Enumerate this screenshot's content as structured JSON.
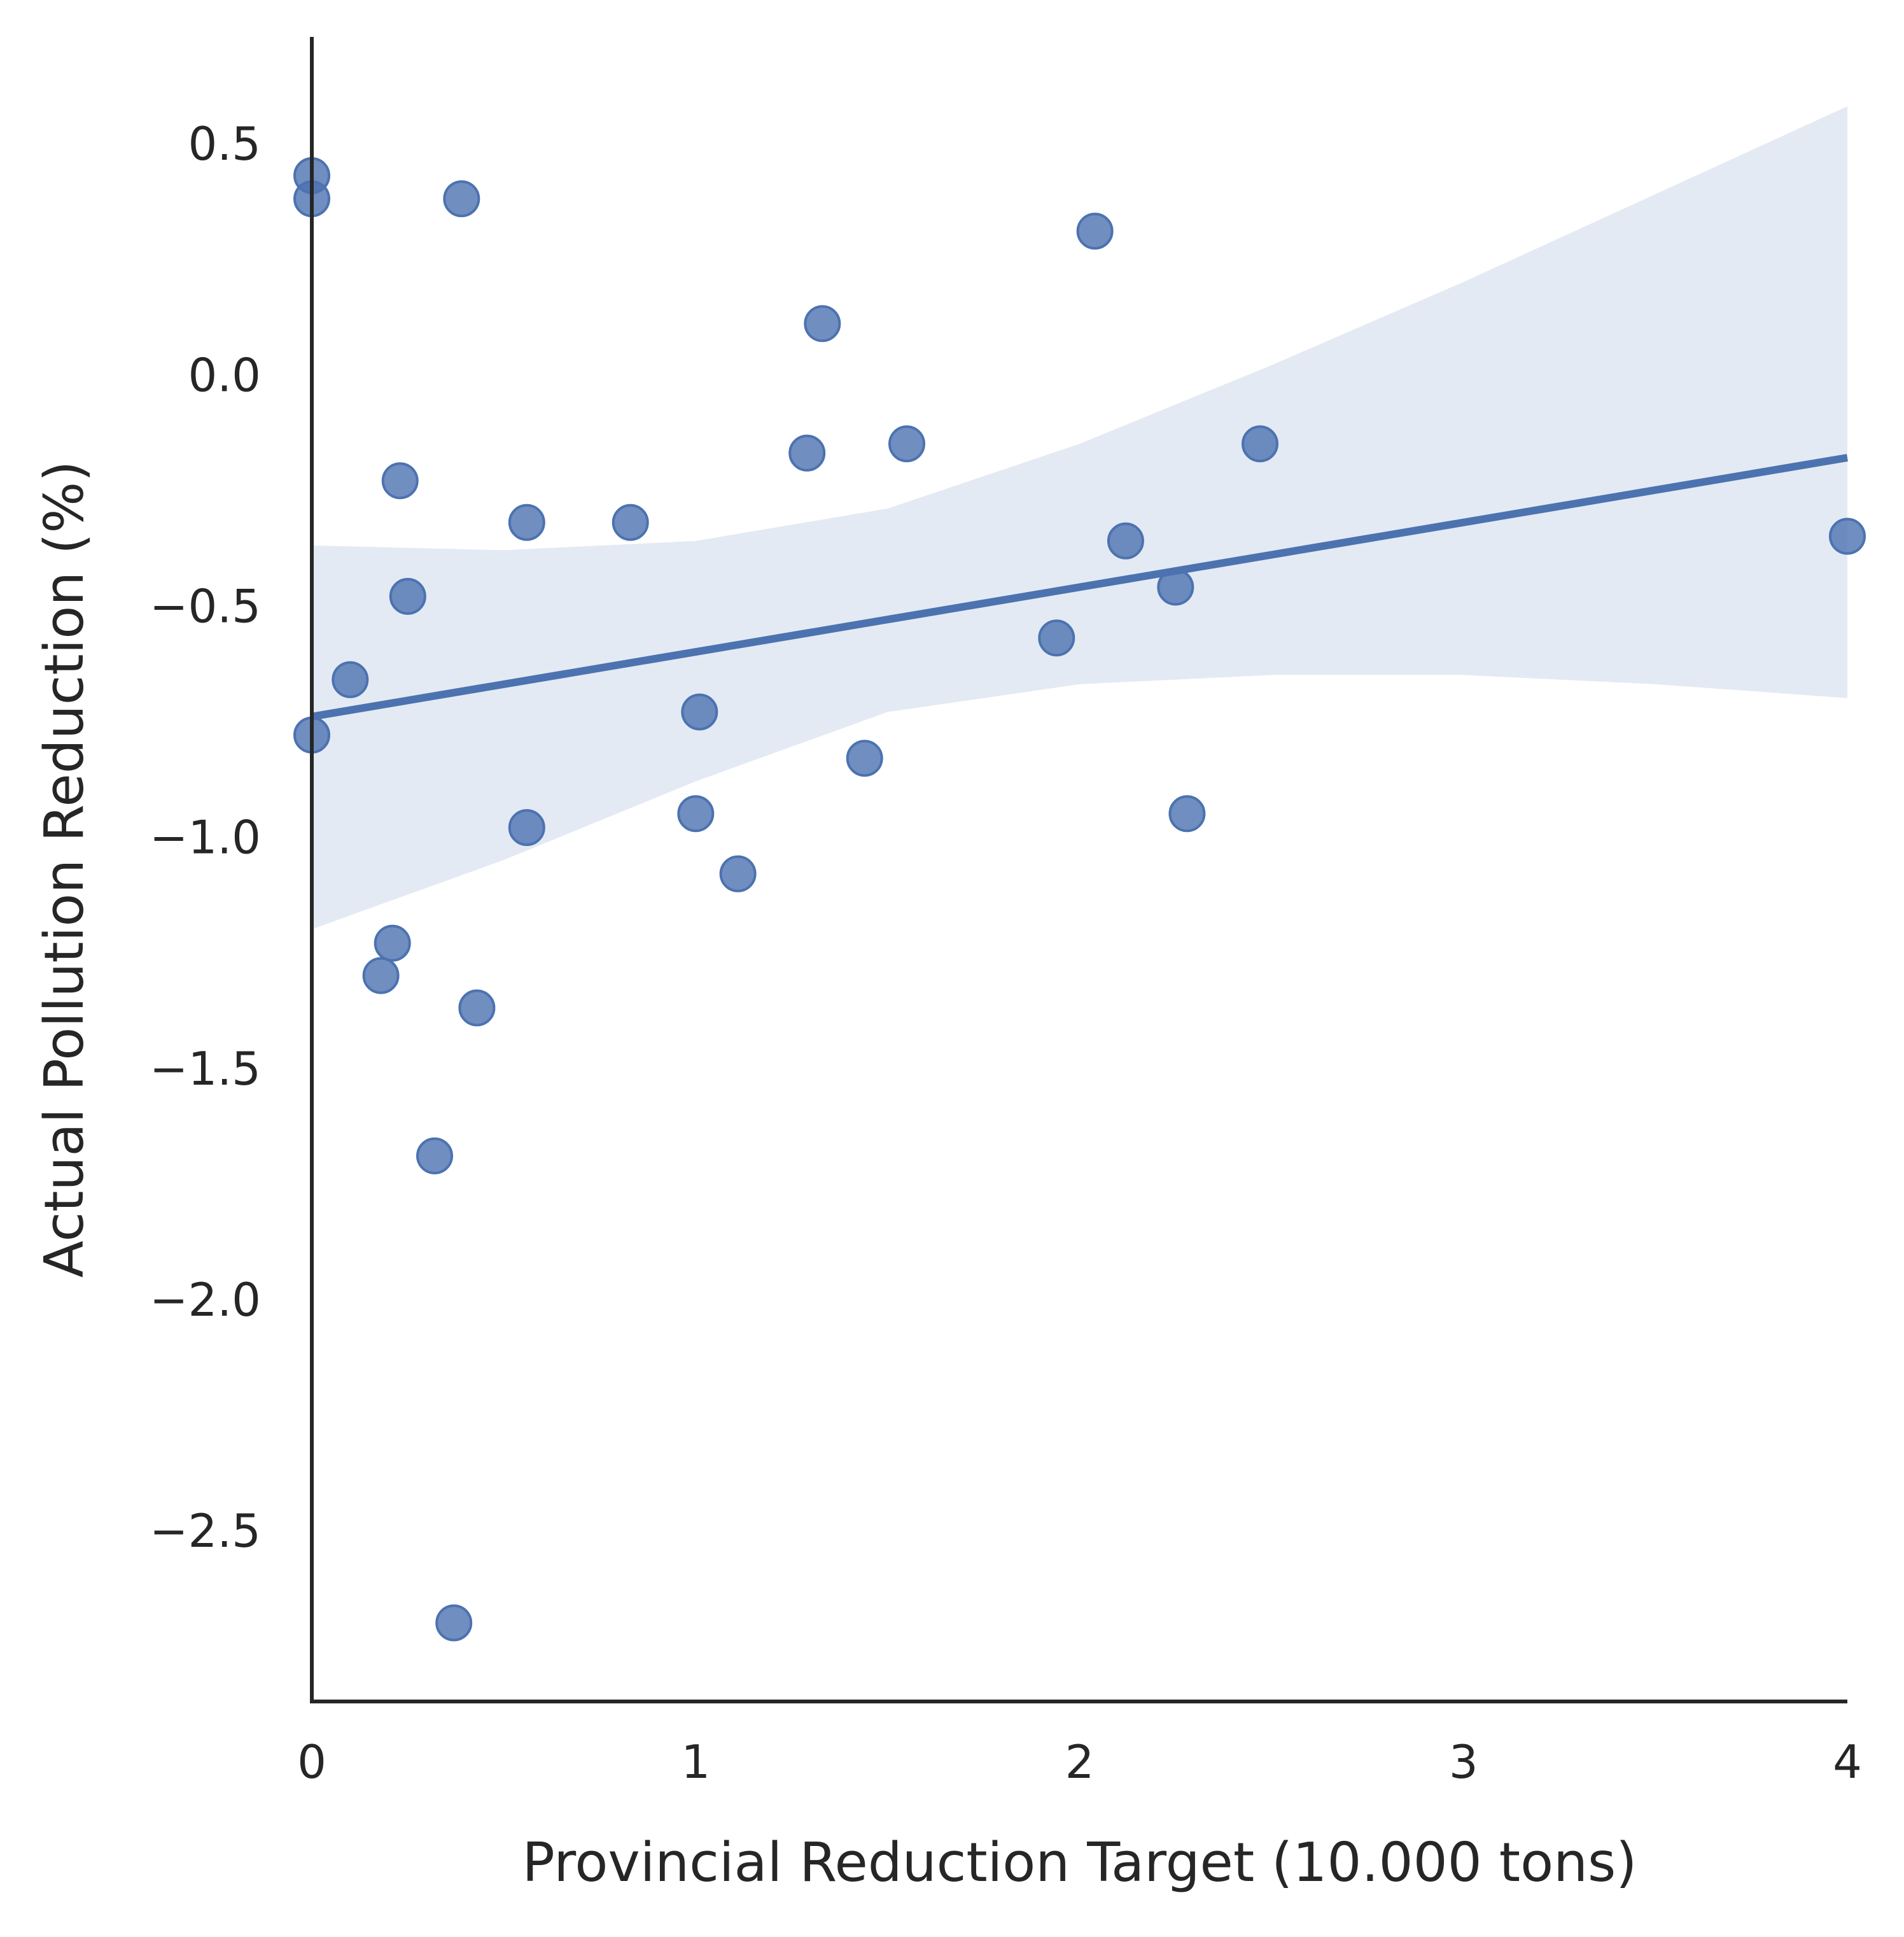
{
  "chart_data": {
    "type": "scatter",
    "title": "",
    "xlabel": "Provincial Reduction Target (10.000 tons)",
    "ylabel": "Actual Pollution Reduction (%)",
    "xlim": [
      0,
      4
    ],
    "ylim": [
      -2.87,
      0.73
    ],
    "x_ticks": [
      0,
      1,
      2,
      3,
      4
    ],
    "x_tick_labels": [
      "0",
      "1",
      "2",
      "3",
      "4"
    ],
    "y_ticks": [
      0.5,
      0.0,
      -0.5,
      -1.0,
      -1.5,
      -2.0,
      -2.5
    ],
    "y_tick_labels": [
      "0.5",
      "0.0",
      "−0.5",
      "−1.0",
      "−1.5",
      "−2.0",
      "−2.5"
    ],
    "grid": false,
    "colors": {
      "points": "#4c72b0",
      "line": "#4c72b0",
      "band": "#4c72b0"
    },
    "points": [
      {
        "x": 0.0,
        "y": 0.43
      },
      {
        "x": 0.0,
        "y": 0.38
      },
      {
        "x": 0.0,
        "y": -0.78
      },
      {
        "x": 0.1,
        "y": -0.66
      },
      {
        "x": 0.18,
        "y": -1.3
      },
      {
        "x": 0.21,
        "y": -1.23
      },
      {
        "x": 0.23,
        "y": -0.23
      },
      {
        "x": 0.25,
        "y": -0.48
      },
      {
        "x": 0.32,
        "y": -1.69
      },
      {
        "x": 0.37,
        "y": -2.7
      },
      {
        "x": 0.39,
        "y": 0.38
      },
      {
        "x": 0.43,
        "y": -1.37
      },
      {
        "x": 0.56,
        "y": -0.32
      },
      {
        "x": 0.56,
        "y": -0.98
      },
      {
        "x": 0.83,
        "y": -0.32
      },
      {
        "x": 1.0,
        "y": -0.95
      },
      {
        "x": 1.01,
        "y": -0.73
      },
      {
        "x": 1.11,
        "y": -1.08
      },
      {
        "x": 1.29,
        "y": -0.17
      },
      {
        "x": 1.33,
        "y": 0.11
      },
      {
        "x": 1.44,
        "y": -0.83
      },
      {
        "x": 1.55,
        "y": -0.15
      },
      {
        "x": 1.94,
        "y": -0.57
      },
      {
        "x": 2.04,
        "y": 0.31
      },
      {
        "x": 2.12,
        "y": -0.36
      },
      {
        "x": 2.25,
        "y": -0.46
      },
      {
        "x": 2.28,
        "y": -0.95
      },
      {
        "x": 2.47,
        "y": -0.15
      },
      {
        "x": 4.0,
        "y": -0.35
      }
    ],
    "regression_line": {
      "x": [
        0,
        4
      ],
      "y": [
        -0.74,
        -0.18
      ]
    },
    "confidence_band": {
      "x": [
        0.0,
        0.5,
        1.0,
        1.5,
        2.0,
        2.5,
        3.0,
        3.5,
        4.0
      ],
      "upper": [
        -0.37,
        -0.38,
        -0.36,
        -0.29,
        -0.15,
        0.02,
        0.2,
        0.39,
        0.58
      ],
      "lower": [
        -1.2,
        -1.05,
        -0.88,
        -0.73,
        -0.67,
        -0.65,
        -0.65,
        -0.67,
        -0.7
      ]
    }
  }
}
